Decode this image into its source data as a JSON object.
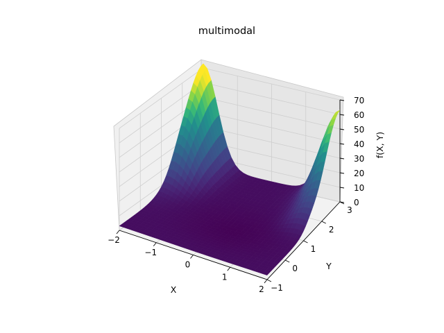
{
  "chart_data": {
    "type": "surface",
    "title": "multimodal",
    "xlabel": "X",
    "ylabel": "Y",
    "zlabel": "f(X, Y)",
    "colormap": "viridis",
    "xlim": [
      -2,
      2
    ],
    "ylim": [
      -1,
      3
    ],
    "zlim": [
      0,
      70
    ],
    "x_ticks": [
      "−2",
      "−1",
      "0",
      "1",
      "2"
    ],
    "y_ticks": [
      "−1",
      "0",
      "1",
      "2",
      "3"
    ],
    "z_ticks": [
      "0",
      "10",
      "20",
      "30",
      "40",
      "50",
      "60",
      "70"
    ],
    "x_tick_values": [
      -2,
      -1,
      0,
      1,
      2
    ],
    "y_tick_values": [
      -1,
      0,
      1,
      2,
      3
    ],
    "z_tick_values": [
      0,
      10,
      20,
      30,
      40,
      50,
      60,
      70
    ],
    "grid": true,
    "peaks": [
      {
        "x": -2,
        "y": 3,
        "z": 72
      },
      {
        "x": 2,
        "y": 3,
        "z": 64
      }
    ],
    "minimum_region": {
      "x": 0,
      "y": 0.5,
      "z": 0
    }
  }
}
